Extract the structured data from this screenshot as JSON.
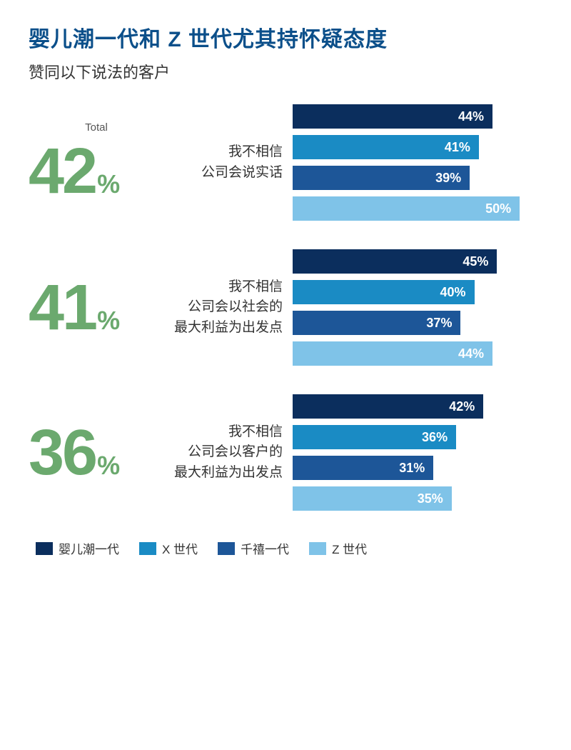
{
  "title": "婴儿潮一代和 Z 世代尤其持怀疑态度",
  "subtitle": "赞同以下说法的客户",
  "total_header": "Total",
  "chart": {
    "type": "bar",
    "bar_max_pct": 55,
    "colors": {
      "boomer": "#0b2e5d",
      "genx": "#1a8bc4",
      "millennial": "#1d5698",
      "genz": "#7fc3e8",
      "total_text": "#6ba96e",
      "title_text": "#0b4f8a",
      "body_text": "#333333",
      "bar_label_text": "#ffffff",
      "background": "#ffffff"
    },
    "sections": [
      {
        "total": "42",
        "statement_lines": [
          "我不相信",
          "公司会说实话"
        ],
        "bars": [
          {
            "value": 44,
            "label": "44%",
            "color_key": "boomer"
          },
          {
            "value": 41,
            "label": "41%",
            "color_key": "genx"
          },
          {
            "value": 39,
            "label": "39%",
            "color_key": "millennial"
          },
          {
            "value": 50,
            "label": "50%",
            "color_key": "genz"
          }
        ]
      },
      {
        "total": "41",
        "statement_lines": [
          "我不相信",
          "公司会以社会的",
          "最大利益为出发点"
        ],
        "bars": [
          {
            "value": 45,
            "label": "45%",
            "color_key": "boomer"
          },
          {
            "value": 40,
            "label": "40%",
            "color_key": "genx"
          },
          {
            "value": 37,
            "label": "37%",
            "color_key": "millennial"
          },
          {
            "value": 44,
            "label": "44%",
            "color_key": "genz"
          }
        ]
      },
      {
        "total": "36",
        "statement_lines": [
          "我不相信",
          "公司会以客户的",
          "最大利益为出发点"
        ],
        "bars": [
          {
            "value": 42,
            "label": "42%",
            "color_key": "boomer"
          },
          {
            "value": 36,
            "label": "36%",
            "color_key": "genx"
          },
          {
            "value": 31,
            "label": "31%",
            "color_key": "millennial"
          },
          {
            "value": 35,
            "label": "35%",
            "color_key": "genz"
          }
        ]
      }
    ],
    "legend": [
      {
        "label": "婴儿潮一代",
        "color_key": "boomer"
      },
      {
        "label": "X 世代",
        "color_key": "genx"
      },
      {
        "label": "千禧一代",
        "color_key": "millennial"
      },
      {
        "label": "Z 世代",
        "color_key": "genz"
      }
    ]
  },
  "typography": {
    "title_fontsize": 30,
    "subtitle_fontsize": 22,
    "big_num_fontsize": 90,
    "big_sym_fontsize": 36,
    "statement_fontsize": 19,
    "bar_label_fontsize": 18,
    "legend_fontsize": 17
  }
}
